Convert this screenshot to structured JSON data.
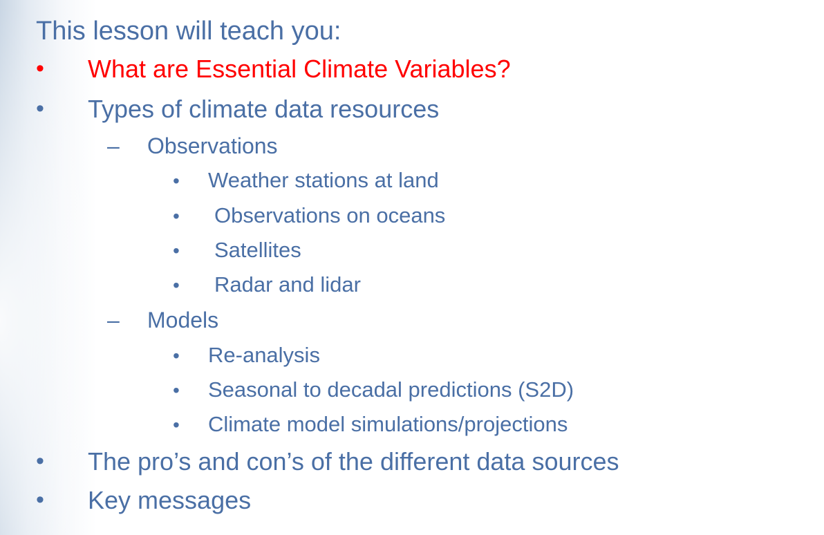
{
  "title": "This lesson will teach you:",
  "colors": {
    "text": "#4a6fa5",
    "highlight": "#ff0000"
  },
  "items": [
    {
      "level": 1,
      "marker": "•",
      "text": "What are Essential Climate Variables?",
      "highlighted": true
    },
    {
      "level": 1,
      "marker": "•",
      "text": "Types of climate data resources"
    },
    {
      "level": 2,
      "marker": "–",
      "text": "Observations"
    },
    {
      "level": 3,
      "marker": "•",
      "text": "Weather stations at land"
    },
    {
      "level": 3,
      "marker": "•",
      "text": "Observations on oceans"
    },
    {
      "level": 3,
      "marker": "•",
      "text": "Satellites"
    },
    {
      "level": 3,
      "marker": "•",
      "text": "Radar and lidar"
    },
    {
      "level": 2,
      "marker": "–",
      "text": "Models"
    },
    {
      "level": 3,
      "marker": "•",
      "text": "Re-analysis"
    },
    {
      "level": 3,
      "marker": "•",
      "text": "Seasonal to decadal predictions (S2D)"
    },
    {
      "level": 3,
      "marker": "•",
      "text": "Climate model simulations/projections"
    },
    {
      "level": 1,
      "marker": "•",
      "text": "The pro’s and con’s of the different data sources"
    },
    {
      "level": 1,
      "marker": "•",
      "text": "Key messages"
    }
  ]
}
